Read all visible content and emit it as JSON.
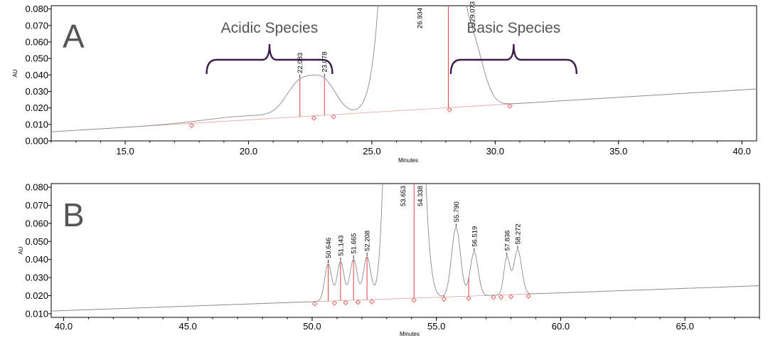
{
  "chart_data": [
    {
      "type": "line",
      "panel_letter": "A",
      "title": "",
      "xlabel": "Minutes",
      "ylabel": "AU",
      "xlim": [
        12.0,
        40.6
      ],
      "ylim": [
        0.0,
        0.082
      ],
      "x_ticks": [
        "15.0",
        "20.0",
        "25.0",
        "30.0",
        "35.0",
        "40.0"
      ],
      "y_ticks": [
        "0.000",
        "0.010",
        "0.020",
        "0.030",
        "0.040",
        "0.050",
        "0.060",
        "0.070",
        "0.080"
      ],
      "baseline": {
        "x": [
          12.0,
          40.6
        ],
        "y": [
          0.0055,
          0.0315
        ]
      },
      "peaks": [
        {
          "label": "22.083",
          "rt": 22.083,
          "height": 0.0195,
          "width": 0.55
        },
        {
          "label": "23.078",
          "rt": 23.078,
          "height": 0.0185,
          "width": 0.5
        },
        {
          "label": "26.934",
          "rt": 26.934,
          "height": 1.0,
          "width": 0.72
        },
        {
          "label": "29.073",
          "rt": 29.073,
          "height": 0.0355,
          "width": 0.45
        }
      ],
      "broad_hump": {
        "rt": 19.8,
        "height": 0.0025,
        "width": 1.6
      },
      "drop_lines": [
        22.083,
        23.078,
        28.1
      ],
      "markers": [
        17.7,
        22.65,
        23.45,
        28.15,
        30.6
      ],
      "groups": [
        {
          "label": "Acidic Species",
          "from": 18.3,
          "to": 23.4
        },
        {
          "label": "Basic Species",
          "from": 28.2,
          "to": 33.3
        }
      ]
    },
    {
      "type": "line",
      "panel_letter": "B",
      "title": "",
      "xlabel": "Minutes",
      "ylabel": "AU",
      "xlim": [
        39.5,
        68.0
      ],
      "ylim": [
        0.008,
        0.082
      ],
      "x_ticks": [
        "40.0",
        "45.0",
        "50.0",
        "55.0",
        "60.0",
        "65.0"
      ],
      "y_ticks": [
        "0.010",
        "0.020",
        "0.030",
        "0.040",
        "0.050",
        "0.060",
        "0.070",
        "0.080"
      ],
      "baseline": {
        "x": [
          39.5,
          68.0
        ],
        "y": [
          0.0115,
          0.0255
        ]
      },
      "peaks": [
        {
          "label": "50.646",
          "rt": 50.646,
          "height": 0.0205,
          "width": 0.14
        },
        {
          "label": "51.143",
          "rt": 51.143,
          "height": 0.0215,
          "width": 0.14
        },
        {
          "label": "51.665",
          "rt": 51.665,
          "height": 0.0225,
          "width": 0.15
        },
        {
          "label": "52.208",
          "rt": 52.208,
          "height": 0.0235,
          "width": 0.15
        },
        {
          "label": "53.653",
          "rt": 53.653,
          "height": 1.0,
          "width": 0.35
        },
        {
          "label": "54.338",
          "rt": 54.338,
          "height": 0.0485,
          "width": 0.28
        },
        {
          "label": "55.790",
          "rt": 55.79,
          "height": 0.038,
          "width": 0.18
        },
        {
          "label": "56.519",
          "rt": 56.519,
          "height": 0.024,
          "width": 0.16
        },
        {
          "label": "57.836",
          "rt": 57.836,
          "height": 0.0205,
          "width": 0.12
        },
        {
          "label": "58.272",
          "rt": 58.272,
          "height": 0.0245,
          "width": 0.16
        }
      ],
      "broad_hump": null,
      "drop_lines": [
        50.646,
        51.143,
        51.665,
        52.208,
        54.1,
        55.3,
        56.3
      ],
      "markers": [
        50.1,
        50.9,
        51.35,
        51.85,
        52.4,
        54.1,
        55.3,
        56.3,
        57.3,
        57.6,
        58.0,
        58.7
      ],
      "groups": []
    }
  ]
}
